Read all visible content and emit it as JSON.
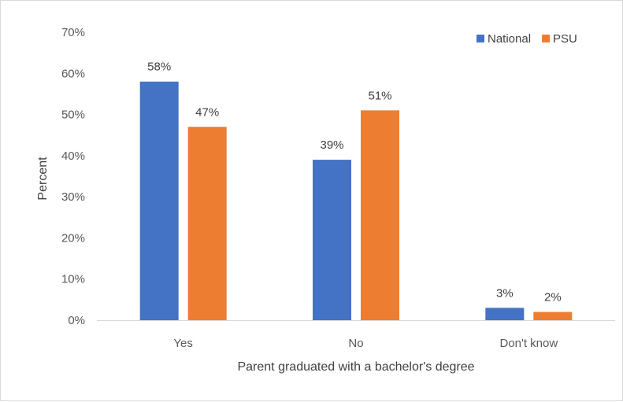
{
  "chart_data": {
    "type": "bar",
    "categories": [
      "Yes",
      "No",
      "Don't know"
    ],
    "series": [
      {
        "name": "National",
        "values": [
          58,
          39,
          3
        ],
        "labels": [
          "58%",
          "39%",
          "3%"
        ],
        "color": "#4472C4"
      },
      {
        "name": "PSU",
        "values": [
          47,
          51,
          2
        ],
        "labels": [
          "47%",
          "51%",
          "2%"
        ],
        "color": "#ED7D31"
      }
    ],
    "xlabel": "Parent graduated with a bachelor's degree",
    "ylabel": "Percent",
    "ylim": [
      0,
      70
    ],
    "yticks": [
      "0%",
      "10%",
      "20%",
      "30%",
      "40%",
      "50%",
      "60%",
      "70%"
    ],
    "grid": false,
    "legend_position": "top-right"
  }
}
